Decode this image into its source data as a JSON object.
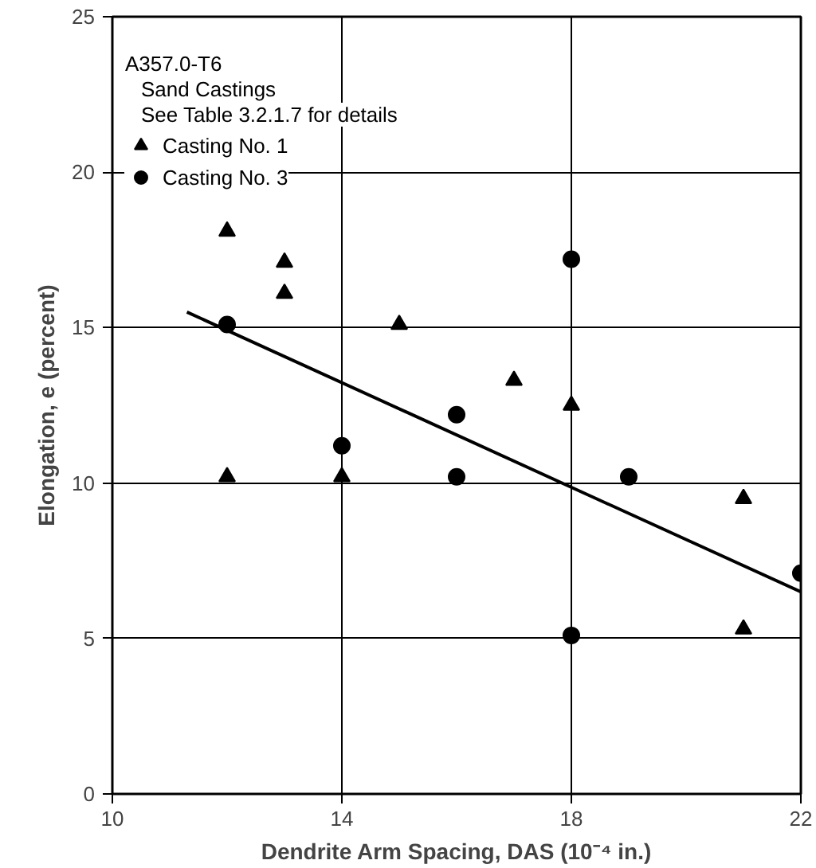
{
  "chart_data": {
    "type": "scatter",
    "xlabel": "Dendrite Arm Spacing, DAS (10⁻⁴ in.)",
    "ylabel": "Elongation, e (percent)",
    "annotations": [
      "A357.0-T6",
      "Sand Castings",
      "See Table 3.2.1.7 for details"
    ],
    "xlim": [
      10,
      22
    ],
    "xticks": [
      10,
      14,
      18,
      22
    ],
    "ylim": [
      0,
      25
    ],
    "yticks": [
      0,
      5,
      10,
      15,
      20,
      25
    ],
    "grid": true,
    "legend": "top left",
    "series": [
      {
        "name": "Casting No. 1",
        "color": "#000000",
        "marker": "triangle",
        "x": [
          12,
          12,
          13,
          13,
          14,
          15,
          17,
          18,
          21,
          21
        ],
        "values": [
          18.1,
          10.2,
          17.1,
          16.1,
          10.2,
          15.1,
          13.3,
          12.5,
          9.5,
          5.3
        ]
      },
      {
        "name": "Casting No. 3",
        "color": "#000000",
        "marker": "circle",
        "x": [
          12,
          14,
          16,
          16,
          18,
          18,
          19,
          22
        ],
        "values": [
          15.1,
          11.2,
          12.2,
          10.2,
          17.2,
          5.1,
          10.2,
          7.1
        ]
      },
      {
        "type": "line",
        "color": "#000000",
        "x": [
          11.3,
          22
        ],
        "values": [
          15.5,
          6.5
        ]
      }
    ]
  }
}
